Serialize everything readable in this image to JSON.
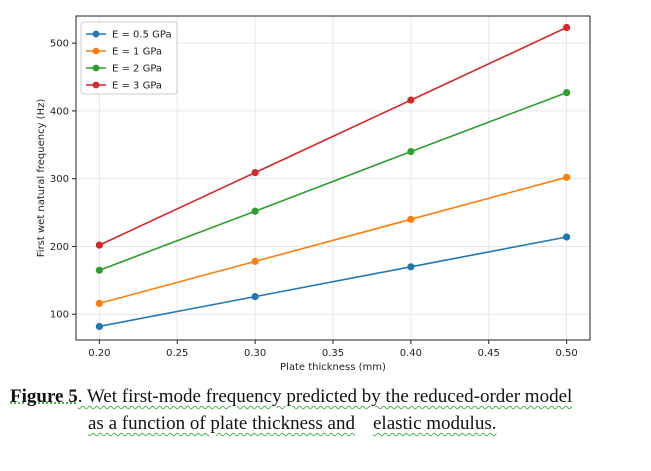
{
  "chart_data": {
    "type": "line",
    "xlabel": "Plate thickness (mm)",
    "ylabel": "First wet natural frequency (Hz)",
    "xlim": [
      0.185,
      0.515
    ],
    "ylim": [
      62,
      540
    ],
    "xticks": [
      0.2,
      0.25,
      0.3,
      0.35,
      0.4,
      0.45,
      0.5
    ],
    "xtick_labels": [
      "0.20",
      "0.25",
      "0.30",
      "0.35",
      "0.40",
      "0.45",
      "0.50"
    ],
    "yticks": [
      100,
      200,
      300,
      400,
      500
    ],
    "ytick_labels": [
      "100",
      "200",
      "300",
      "400",
      "500"
    ],
    "grid": true,
    "legend_position": "top-left",
    "x": [
      0.2,
      0.3,
      0.4,
      0.5
    ],
    "series": [
      {
        "name": "E = 0.5 GPa",
        "color": "#1f77b4",
        "values": [
          82,
          126,
          170,
          214
        ]
      },
      {
        "name": "E = 1 GPa",
        "color": "#ff7f0e",
        "values": [
          116,
          178,
          240,
          302
        ]
      },
      {
        "name": "E = 2 GPa",
        "color": "#2ca02c",
        "values": [
          165,
          252,
          340,
          427
        ]
      },
      {
        "name": "E = 3 GPa",
        "color": "#d62728",
        "values": [
          202,
          309,
          416,
          523
        ]
      }
    ]
  },
  "caption": {
    "label": "Figure  5",
    "line1_text": ". Wet first-mode frequency predicted by the reduced-order model",
    "line2_part1": "as a function of plate thickness and",
    "line2_part2": "elastic modulus."
  }
}
